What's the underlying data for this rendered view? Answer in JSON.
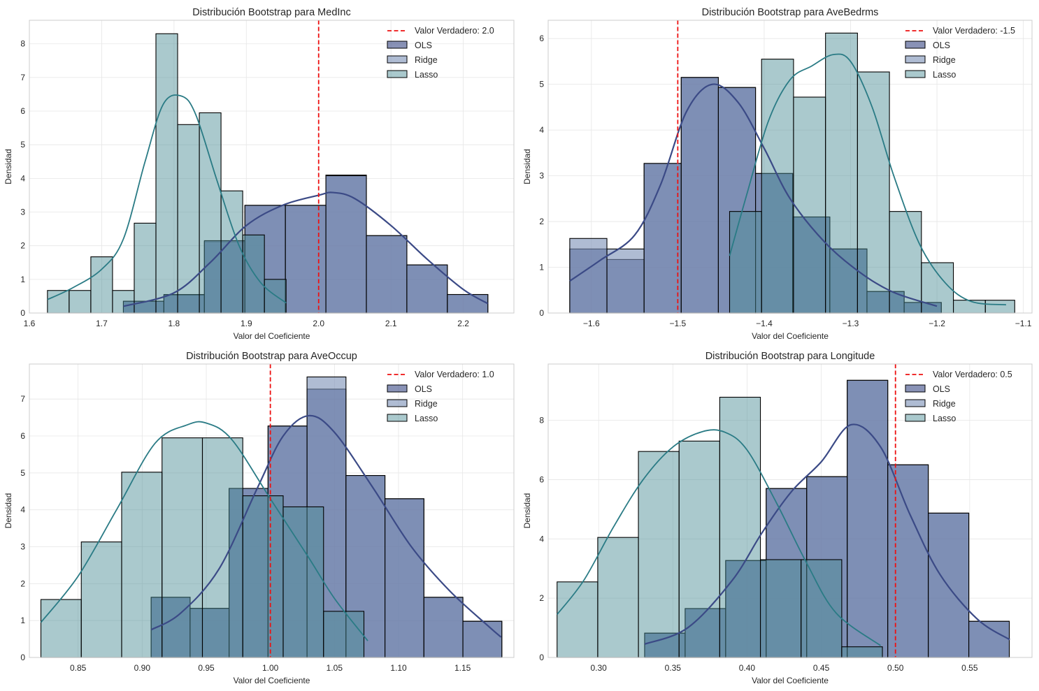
{
  "colors": {
    "ols": "#3b4a86",
    "ridge": "#7a8fb5",
    "lasso": "#4d8f97",
    "ols_kde": "#3b4a86",
    "lasso_kde": "#2a7b85",
    "true_line": "#ee1111",
    "grid": "#e6e6e6",
    "frame": "#cccccc"
  },
  "chart_data": [
    {
      "type": "histogram",
      "title": "Distribución Bootstrap para MedInc",
      "xlabel": "Valor del Coeficiente",
      "ylabel": "Densidad",
      "xlim": [
        1.6,
        2.27
      ],
      "ylim": [
        0,
        8.7
      ],
      "xticks": [
        1.6,
        1.7,
        1.8,
        1.9,
        2.0,
        2.1,
        2.2
      ],
      "xtick_labels": [
        "1.6",
        "1.7",
        "1.8",
        "1.9",
        "2.0",
        "2.1",
        "2.2"
      ],
      "yticks": [
        0,
        1,
        2,
        3,
        4,
        5,
        6,
        7,
        8
      ],
      "true_value": 2.0,
      "legend": [
        "Valor Verdadero: 2.0",
        "OLS",
        "Ridge",
        "Lasso"
      ],
      "series": [
        {
          "name": "OLS",
          "edges": [
            1.73,
            1.786,
            1.842,
            1.898,
            1.954,
            2.01,
            2.066,
            2.122,
            2.178,
            2.234
          ],
          "values": [
            0.35,
            0.53,
            2.12,
            3.2,
            3.2,
            4.1,
            2.3,
            1.43,
            0.55
          ]
        },
        {
          "name": "Ridge",
          "edges": [
            1.73,
            1.786,
            1.842,
            1.898,
            1.954,
            2.01,
            2.066,
            2.122,
            2.178,
            2.234
          ],
          "values": [
            0.35,
            0.55,
            2.15,
            3.2,
            3.2,
            4.08,
            2.3,
            1.43,
            0.55
          ]
        },
        {
          "name": "Lasso",
          "edges": [
            1.625,
            1.655,
            1.685,
            1.715,
            1.745,
            1.775,
            1.805,
            1.835,
            1.865,
            1.895,
            1.925,
            1.955
          ],
          "values": [
            0.67,
            0.67,
            1.67,
            0.67,
            2.67,
            8.3,
            5.6,
            5.95,
            3.63,
            2.32,
            1.0
          ]
        }
      ],
      "kde": [
        {
          "name": "OLS",
          "x": [
            1.73,
            1.8,
            1.85,
            1.9,
            1.95,
            2.0,
            2.02,
            2.05,
            2.1,
            2.15,
            2.2,
            2.234
          ],
          "y": [
            0.2,
            0.6,
            1.5,
            2.6,
            3.2,
            3.5,
            3.58,
            3.4,
            2.6,
            1.6,
            0.7,
            0.28
          ]
        },
        {
          "name": "Lasso",
          "x": [
            1.625,
            1.66,
            1.7,
            1.73,
            1.76,
            1.785,
            1.81,
            1.83,
            1.86,
            1.89,
            1.92,
            1.955
          ],
          "y": [
            0.4,
            0.75,
            1.3,
            2.2,
            4.5,
            6.2,
            6.45,
            5.9,
            3.9,
            2.0,
            0.9,
            0.3
          ]
        }
      ]
    },
    {
      "type": "histogram",
      "title": "Distribución Bootstrap para AveBedrms",
      "xlabel": "Valor del Coeficiente",
      "ylabel": "Densidad",
      "xlim": [
        -1.65,
        -1.09
      ],
      "ylim": [
        0,
        6.4
      ],
      "xticks": [
        -1.6,
        -1.5,
        -1.4,
        -1.3,
        -1.2,
        -1.1
      ],
      "xtick_labels": [
        "−1.6",
        "−1.5",
        "−1.4",
        "−1.3",
        "−1.2",
        "−1.1"
      ],
      "yticks": [
        0,
        1,
        2,
        3,
        4,
        5,
        6
      ],
      "true_value": -1.5,
      "legend": [
        "Valor Verdadero: -1.5",
        "OLS",
        "Ridge",
        "Lasso"
      ],
      "series": [
        {
          "name": "OLS",
          "edges": [
            -1.625,
            -1.582,
            -1.539,
            -1.496,
            -1.453,
            -1.41,
            -1.367,
            -1.324,
            -1.281,
            -1.238,
            -1.195
          ],
          "values": [
            1.4,
            1.17,
            3.27,
            5.15,
            4.93,
            3.05,
            2.1,
            1.4,
            0.47,
            0.23
          ]
        },
        {
          "name": "Ridge",
          "edges": [
            -1.625,
            -1.582,
            -1.539,
            -1.496,
            -1.453,
            -1.41,
            -1.367,
            -1.324,
            -1.281,
            -1.238,
            -1.195
          ],
          "values": [
            1.63,
            1.4,
            3.27,
            5.15,
            4.93,
            3.05,
            2.1,
            1.4,
            0.47,
            0.23
          ]
        },
        {
          "name": "Lasso",
          "edges": [
            -1.44,
            -1.403,
            -1.366,
            -1.329,
            -1.292,
            -1.255,
            -1.218,
            -1.181,
            -1.144,
            -1.11
          ],
          "values": [
            2.22,
            5.55,
            4.72,
            6.12,
            5.27,
            2.22,
            1.1,
            0.28,
            0.28
          ]
        }
      ],
      "kde": [
        {
          "name": "OLS",
          "x": [
            -1.625,
            -1.59,
            -1.55,
            -1.52,
            -1.49,
            -1.46,
            -1.43,
            -1.4,
            -1.37,
            -1.33,
            -1.29,
            -1.25,
            -1.2
          ],
          "y": [
            0.7,
            1.15,
            1.7,
            2.8,
            4.4,
            5.0,
            4.6,
            3.6,
            2.5,
            1.55,
            0.9,
            0.45,
            0.15
          ]
        },
        {
          "name": "Lasso",
          "x": [
            -1.44,
            -1.42,
            -1.395,
            -1.37,
            -1.345,
            -1.32,
            -1.3,
            -1.275,
            -1.25,
            -1.22,
            -1.19,
            -1.16,
            -1.12
          ],
          "y": [
            1.25,
            2.6,
            4.2,
            5.1,
            5.4,
            5.65,
            5.5,
            4.5,
            3.0,
            1.5,
            0.65,
            0.25,
            0.18
          ]
        }
      ]
    },
    {
      "type": "histogram",
      "title": "Distribución Bootstrap para AveOccup",
      "xlabel": "Valor del Coeficiente",
      "ylabel": "Densidad",
      "xlim": [
        0.812,
        1.19
      ],
      "ylim": [
        0,
        7.95
      ],
      "xticks": [
        0.85,
        0.9,
        0.95,
        1.0,
        1.05,
        1.1,
        1.15
      ],
      "xtick_labels": [
        "0.85",
        "0.90",
        "0.95",
        "1.00",
        "1.05",
        "1.10",
        "1.15"
      ],
      "yticks": [
        0,
        1,
        2,
        3,
        4,
        5,
        6,
        7
      ],
      "true_value": 1.0,
      "legend": [
        "Valor Verdadero: 1.0",
        "OLS",
        "Ridge",
        "Lasso"
      ],
      "series": [
        {
          "name": "OLS",
          "edges": [
            0.907,
            0.9374,
            0.9678,
            0.9982,
            1.0286,
            1.059,
            1.0894,
            1.1198,
            1.1502,
            1.1806
          ],
          "values": [
            1.63,
            1.33,
            4.58,
            6.27,
            7.27,
            4.93,
            4.3,
            1.63,
            0.98
          ]
        },
        {
          "name": "Ridge",
          "edges": [
            0.907,
            0.9374,
            0.9678,
            0.9982,
            1.0286,
            1.059,
            1.0894,
            1.1198,
            1.1502,
            1.1806
          ],
          "values": [
            1.63,
            1.33,
            4.58,
            6.27,
            7.6,
            4.93,
            4.3,
            1.63,
            0.98
          ]
        },
        {
          "name": "Lasso",
          "edges": [
            0.821,
            0.8525,
            0.884,
            0.9155,
            0.947,
            0.9785,
            1.01,
            1.0415,
            1.073
          ],
          "values": [
            1.57,
            3.13,
            5.02,
            5.95,
            5.95,
            4.38,
            4.08,
            1.25
          ]
        }
      ],
      "kde": [
        {
          "name": "OLS",
          "x": [
            0.907,
            0.93,
            0.96,
            0.99,
            1.01,
            1.03,
            1.05,
            1.08,
            1.11,
            1.14,
            1.17,
            1.18
          ],
          "y": [
            0.75,
            1.2,
            2.4,
            4.6,
            6.0,
            6.55,
            6.1,
            4.6,
            3.0,
            1.8,
            0.85,
            0.55
          ]
        },
        {
          "name": "Lasso",
          "x": [
            0.821,
            0.85,
            0.88,
            0.91,
            0.935,
            0.95,
            0.97,
            1.0,
            1.03,
            1.05,
            1.076
          ],
          "y": [
            0.95,
            2.2,
            4.0,
            5.8,
            6.3,
            6.35,
            5.9,
            4.3,
            2.7,
            1.6,
            0.45
          ]
        }
      ]
    },
    {
      "type": "histogram",
      "title": "Distribución Bootstrap para Longitude",
      "xlabel": "Valor del Coeficiente",
      "ylabel": "Densidad",
      "xlim": [
        0.266,
        0.592
      ],
      "ylim": [
        0,
        9.9
      ],
      "xticks": [
        0.3,
        0.35,
        0.4,
        0.45,
        0.5,
        0.55
      ],
      "xtick_labels": [
        "0.30",
        "0.35",
        "0.40",
        "0.45",
        "0.50",
        "0.55"
      ],
      "yticks": [
        0,
        2,
        4,
        6,
        8
      ],
      "true_value": 0.5,
      "legend": [
        "Valor Verdadero: 0.5",
        "OLS",
        "Ridge",
        "Lasso"
      ],
      "series": [
        {
          "name": "OLS",
          "edges": [
            0.331,
            0.3583,
            0.3856,
            0.4129,
            0.4402,
            0.4675,
            0.4948,
            0.5221,
            0.5494,
            0.5767
          ],
          "values": [
            0.82,
            1.65,
            3.27,
            5.7,
            6.1,
            9.35,
            6.5,
            4.87,
            1.22
          ]
        },
        {
          "name": "Ridge",
          "edges": [
            0.331,
            0.3583,
            0.3856,
            0.4129,
            0.4402,
            0.4675,
            0.4948,
            0.5221,
            0.5494,
            0.5767
          ],
          "values": [
            0.82,
            1.65,
            3.27,
            5.7,
            6.1,
            9.35,
            6.5,
            4.87,
            1.22
          ]
        },
        {
          "name": "Lasso",
          "edges": [
            0.272,
            0.2994,
            0.3268,
            0.3542,
            0.3816,
            0.409,
            0.4364,
            0.4638,
            0.4912
          ],
          "values": [
            2.55,
            4.05,
            6.95,
            7.3,
            8.78,
            3.3,
            3.3,
            0.36
          ]
        }
      ],
      "kde": [
        {
          "name": "OLS",
          "x": [
            0.331,
            0.36,
            0.39,
            0.41,
            0.43,
            0.45,
            0.47,
            0.49,
            0.51,
            0.53,
            0.555,
            0.577
          ],
          "y": [
            0.45,
            1.0,
            2.6,
            4.2,
            5.6,
            6.6,
            7.85,
            7.1,
            4.8,
            2.8,
            1.3,
            0.6
          ]
        },
        {
          "name": "Lasso",
          "x": [
            0.272,
            0.29,
            0.31,
            0.33,
            0.35,
            0.37,
            0.385,
            0.4,
            0.42,
            0.44,
            0.46,
            0.49
          ],
          "y": [
            1.45,
            2.6,
            4.4,
            6.0,
            7.1,
            7.62,
            7.6,
            7.0,
            5.2,
            3.2,
            1.5,
            0.4
          ]
        }
      ]
    }
  ]
}
